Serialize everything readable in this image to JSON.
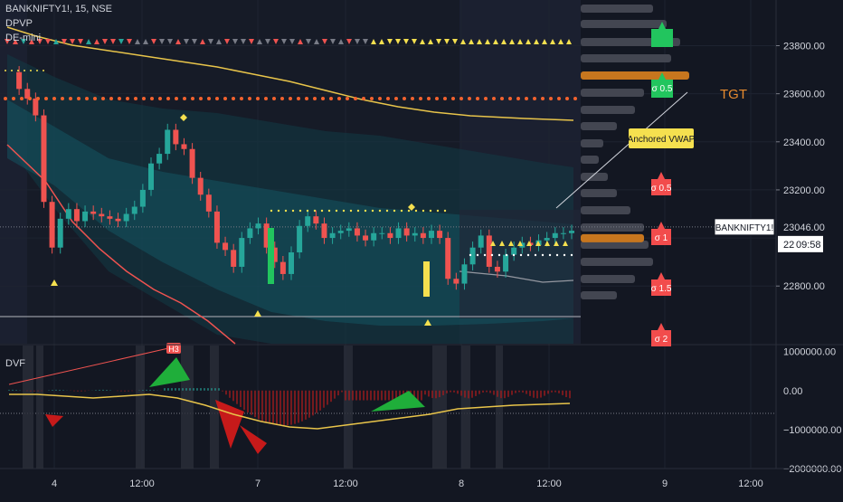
{
  "header": {
    "symbol_line": "BANKNIFTY1!, 15, NSE",
    "indicator_1": "DPVP",
    "indicator_2": "DE-mini",
    "subpane_title": "DVF"
  },
  "colors": {
    "background": "#131722",
    "bull": "#26a69a",
    "bear": "#ef5350",
    "vwap": "#e8c44a",
    "orange_dots": "#f2622e",
    "yellow": "#f5e04f",
    "sigma_red": "#f24c4c",
    "sigma_green": "#22c55e",
    "profile_bar": "#434651",
    "profile_poc": "#c7761e",
    "tgt": "#e68a2e"
  },
  "chart_data": [
    {
      "type": "candlestick",
      "title": "BANKNIFTY1!, 15, NSE",
      "ylim": [
        22560,
        23990
      ],
      "y_ticks": [
        "23800.00",
        "23600.00",
        "23400.00",
        "23200.00",
        "22800.00"
      ],
      "last_price_label": "23046.00",
      "symbol_badge": "BANKNIFTY1!",
      "countdown": "09:58",
      "partial_price": "22",
      "x_ticks": [
        "4",
        "12:00",
        "7",
        "12:00",
        "8",
        "12:00",
        "9",
        "12:00"
      ],
      "annotations": {
        "anchored_vwap": "Anchored VWAP",
        "tgt": "TGT",
        "sigma_labels": [
          "σ 0.5",
          "σ 1",
          "σ 1.5",
          "σ 2"
        ],
        "upper_sigma_label": "σ 0.5"
      },
      "series": [
        {
          "name": "price",
          "values": [
            23690,
            23620,
            23580,
            23510,
            23150,
            22960,
            23080,
            23120,
            23070,
            23110,
            23100,
            23090,
            23080,
            23070,
            23100,
            23130,
            23200,
            23310,
            23350,
            23450,
            23390,
            23370,
            23250,
            23180,
            23110,
            22980,
            22950,
            22880,
            23000,
            23040,
            23060,
            22960,
            22900,
            22850,
            22940,
            23050,
            23090,
            23060,
            23000,
            23020,
            23030,
            23040,
            23010,
            22990,
            23020,
            23020,
            23000,
            23040,
            23010,
            23020,
            23000,
            23030,
            23000,
            22830,
            22810,
            22890,
            22960,
            23010,
            22880,
            22860,
            22930,
            22960,
            22980,
            22970,
            22990,
            23000,
            23020,
            23020,
            23030
          ]
        }
      ]
    },
    {
      "type": "line",
      "title": "DVF",
      "ylim": [
        -2000000,
        1200000
      ],
      "y_ticks": [
        "1000000.00",
        "0.00",
        "−1000000.00",
        "−2000000.00"
      ],
      "marker_label": "H3"
    }
  ]
}
